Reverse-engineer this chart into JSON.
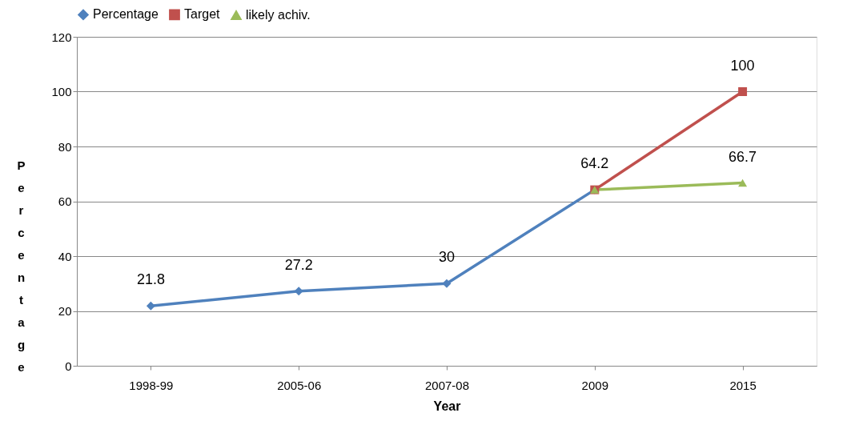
{
  "chart_data": {
    "type": "line",
    "xlabel": "Year",
    "ylabel": "Percentage",
    "categories": [
      "1998-99",
      "2005-06",
      "2007-08",
      "2009",
      "2015"
    ],
    "series": [
      {
        "name": "Percentage",
        "color": "#4f81bd",
        "marker": "diamond",
        "values": [
          21.8,
          27.2,
          30,
          64.2,
          null
        ],
        "value_labels": [
          "21.8",
          "27.2",
          "30",
          "64.2",
          null
        ]
      },
      {
        "name": "Target",
        "color": "#c0504d",
        "marker": "square",
        "values": [
          null,
          null,
          null,
          64.2,
          100
        ],
        "value_labels": [
          null,
          null,
          null,
          null,
          "100"
        ]
      },
      {
        "name": "likely achiv.",
        "color": "#9bbb59",
        "marker": "triangle",
        "values": [
          null,
          null,
          null,
          64.2,
          66.7
        ],
        "value_labels": [
          null,
          null,
          null,
          null,
          "66.7"
        ]
      }
    ],
    "ylim": [
      0,
      120
    ],
    "yticks": [
      0,
      20,
      40,
      60,
      80,
      100,
      120
    ],
    "grid": "y",
    "legend": "top",
    "line_style": "solid"
  }
}
